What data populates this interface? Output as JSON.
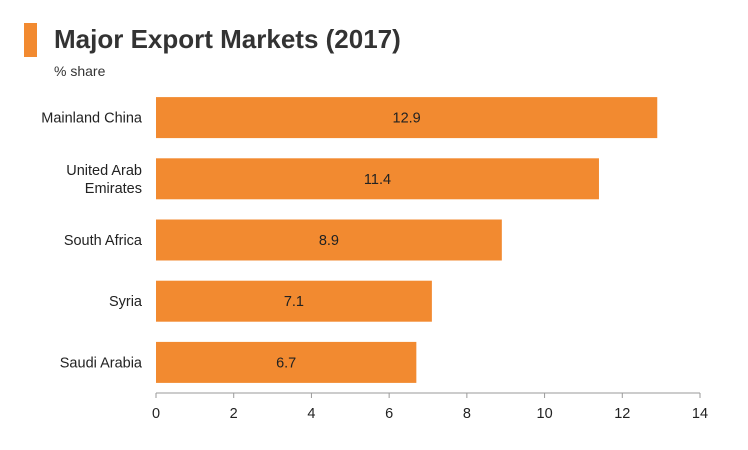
{
  "header": {
    "title": "Major Export Markets (2017)",
    "subtitle": "% share",
    "accent_color": "#f28a30"
  },
  "chart_data": {
    "type": "bar",
    "orientation": "horizontal",
    "title": "Major Export Markets (2017)",
    "subtitle": "% share",
    "categories": [
      [
        "Mainland China"
      ],
      [
        "United Arab",
        "Emirates"
      ],
      [
        "South Africa"
      ],
      [
        "Syria"
      ],
      [
        "Saudi Arabia"
      ]
    ],
    "values": [
      12.9,
      11.4,
      8.9,
      7.1,
      6.7
    ],
    "value_labels": [
      "12.9",
      "11.4",
      "8.9",
      "7.1",
      "6.7"
    ],
    "xlim": [
      0,
      14
    ],
    "xticks": [
      0,
      2,
      4,
      6,
      8,
      10,
      12,
      14
    ],
    "grid": false,
    "bar_color": "#f28a30"
  }
}
